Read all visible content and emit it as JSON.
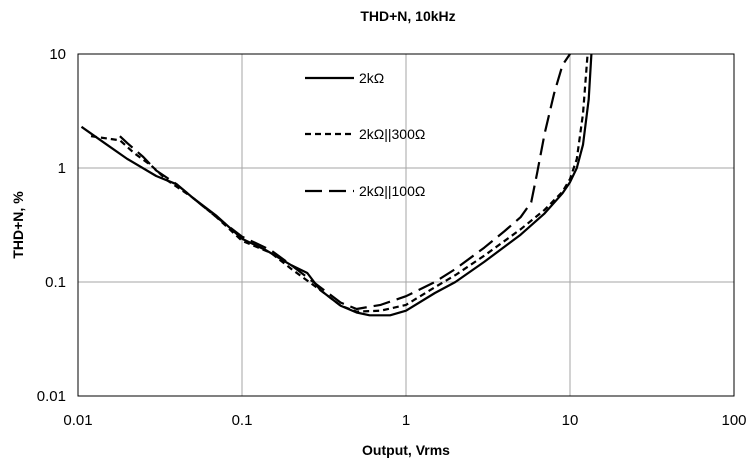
{
  "chart_data": {
    "type": "line",
    "title": "THD+N, 10kHz",
    "xlabel": "Output, Vrms",
    "ylabel": "THD+N, %",
    "xscale": "log",
    "yscale": "log",
    "xlim": [
      0.01,
      100
    ],
    "ylim": [
      0.01,
      10
    ],
    "x_ticks": [
      {
        "value": 0.01,
        "label": "0.01"
      },
      {
        "value": 0.1,
        "label": "0.1"
      },
      {
        "value": 1,
        "label": "1"
      },
      {
        "value": 10,
        "label": "10"
      },
      {
        "value": 100,
        "label": "100"
      }
    ],
    "y_ticks": [
      {
        "value": 0.01,
        "label": "0.01"
      },
      {
        "value": 0.1,
        "label": "0.1"
      },
      {
        "value": 1,
        "label": "1"
      },
      {
        "value": 10,
        "label": "10"
      }
    ],
    "grid": true,
    "legend_position": "top-center",
    "series": [
      {
        "name": "2kΩ",
        "dash": "solid",
        "points": [
          [
            0.0105,
            2.3
          ],
          [
            0.015,
            1.6
          ],
          [
            0.02,
            1.2
          ],
          [
            0.03,
            0.85
          ],
          [
            0.04,
            0.72
          ],
          [
            0.05,
            0.55
          ],
          [
            0.07,
            0.38
          ],
          [
            0.1,
            0.24
          ],
          [
            0.14,
            0.19
          ],
          [
            0.2,
            0.14
          ],
          [
            0.25,
            0.12
          ],
          [
            0.3,
            0.085
          ],
          [
            0.4,
            0.062
          ],
          [
            0.5,
            0.054
          ],
          [
            0.6,
            0.051
          ],
          [
            0.8,
            0.051
          ],
          [
            1,
            0.056
          ],
          [
            1.5,
            0.08
          ],
          [
            2,
            0.1
          ],
          [
            3,
            0.15
          ],
          [
            5,
            0.26
          ],
          [
            7,
            0.4
          ],
          [
            9,
            0.6
          ],
          [
            10,
            0.75
          ],
          [
            11,
            1.0
          ],
          [
            12,
            1.6
          ],
          [
            13,
            4.0
          ],
          [
            13.5,
            10
          ]
        ]
      },
      {
        "name": "2kΩ||300Ω",
        "dash": "short-dash",
        "points": [
          [
            0.012,
            1.9
          ],
          [
            0.018,
            1.75
          ],
          [
            0.022,
            1.35
          ],
          [
            0.028,
            1.05
          ],
          [
            0.035,
            0.78
          ],
          [
            0.05,
            0.55
          ],
          [
            0.07,
            0.37
          ],
          [
            0.1,
            0.23
          ],
          [
            0.15,
            0.18
          ],
          [
            0.2,
            0.13
          ],
          [
            0.3,
            0.085
          ],
          [
            0.4,
            0.062
          ],
          [
            0.5,
            0.055
          ],
          [
            0.7,
            0.056
          ],
          [
            1,
            0.063
          ],
          [
            1.5,
            0.09
          ],
          [
            2,
            0.115
          ],
          [
            3,
            0.17
          ],
          [
            5,
            0.29
          ],
          [
            7,
            0.43
          ],
          [
            9,
            0.62
          ],
          [
            10,
            0.8
          ],
          [
            11,
            1.2
          ],
          [
            12,
            3.0
          ],
          [
            12.8,
            10
          ]
        ]
      },
      {
        "name": "2kΩ||100Ω",
        "dash": "long-dash",
        "points": [
          [
            0.018,
            1.9
          ],
          [
            0.02,
            1.65
          ],
          [
            0.025,
            1.25
          ],
          [
            0.03,
            0.95
          ],
          [
            0.04,
            0.72
          ],
          [
            0.05,
            0.55
          ],
          [
            0.07,
            0.37
          ],
          [
            0.1,
            0.25
          ],
          [
            0.15,
            0.19
          ],
          [
            0.2,
            0.14
          ],
          [
            0.3,
            0.09
          ],
          [
            0.4,
            0.066
          ],
          [
            0.5,
            0.058
          ],
          [
            0.7,
            0.063
          ],
          [
            1,
            0.075
          ],
          [
            1.5,
            0.1
          ],
          [
            2,
            0.13
          ],
          [
            3,
            0.2
          ],
          [
            4,
            0.28
          ],
          [
            5,
            0.37
          ],
          [
            5.8,
            0.5
          ],
          [
            6.3,
            0.9
          ],
          [
            7,
            2.0
          ],
          [
            8,
            4.5
          ],
          [
            9,
            8.0
          ],
          [
            10,
            10.5
          ]
        ]
      }
    ]
  }
}
